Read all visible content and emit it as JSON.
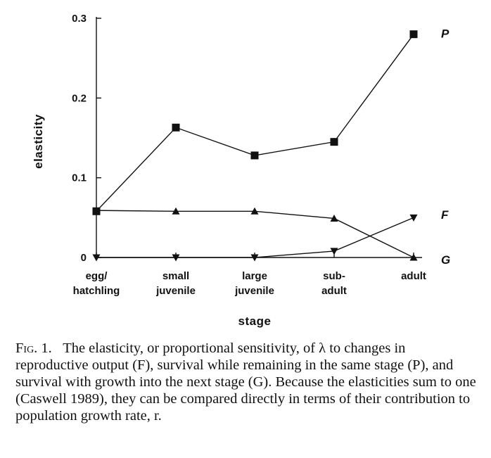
{
  "chart_data": {
    "type": "line",
    "title": "",
    "xlabel": "stage",
    "ylabel": "elasticity",
    "ylim": [
      0,
      0.3
    ],
    "yticks": [
      0,
      0.1,
      0.2,
      0.3
    ],
    "ytick_labels": [
      "0",
      "0.1",
      "0.2",
      "0.3"
    ],
    "categories": [
      [
        "egg/",
        "hatchling"
      ],
      [
        "small",
        "juvenile"
      ],
      [
        "large",
        "juvenile"
      ],
      [
        "sub-",
        "adult"
      ],
      [
        "adult"
      ]
    ],
    "grid": false,
    "series": [
      {
        "name": "P",
        "marker": "square",
        "values": [
          0.058,
          0.163,
          0.128,
          0.145,
          0.28
        ]
      },
      {
        "name": "F",
        "marker": "triangle-down",
        "values": [
          0.0,
          0.0,
          0.0,
          0.008,
          0.05
        ]
      },
      {
        "name": "G",
        "marker": "triangle-up",
        "values": [
          0.059,
          0.058,
          0.058,
          0.049,
          0.0
        ]
      }
    ],
    "series_labels_order_from_top": [
      "P",
      "F",
      "G"
    ]
  },
  "caption": {
    "fig": "Fig. 1.",
    "text": "The elasticity, or proportional sensitivity, of λ to changes in reproductive output (F), survival while remaining in the same stage (P), and survival with growth into the next stage (G). Because the elasticities sum to one (Caswell 1989), they can be compared directly in terms of their contribution to population growth rate, r."
  }
}
